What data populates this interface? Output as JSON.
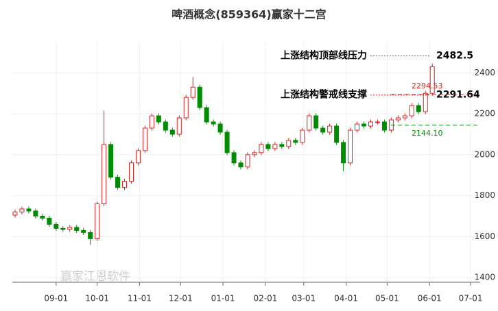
{
  "chart_data": {
    "type": "candlestick",
    "title": "啤酒概念(859364)赢家十二宫",
    "x": [
      -30,
      -25,
      -20,
      -15,
      -10,
      -5,
      0,
      5,
      10,
      15,
      20,
      25,
      30,
      35,
      40,
      45,
      50,
      55,
      60,
      65,
      70,
      75,
      80,
      85,
      90,
      95,
      100,
      105,
      110,
      115,
      120,
      125,
      130,
      135,
      140,
      145,
      150,
      155,
      160,
      165,
      170,
      175,
      180,
      185,
      190,
      195,
      200,
      205,
      210,
      215,
      220,
      225,
      230,
      235,
      240,
      245,
      250,
      255,
      260,
      265,
      270,
      275
    ],
    "open": [
      1705,
      1720,
      1735,
      1725,
      1700,
      1690,
      1660,
      1640,
      1635,
      1645,
      1630,
      1620,
      1590,
      1760,
      2050,
      1890,
      1840,
      1870,
      1960,
      2020,
      2130,
      2190,
      2160,
      2120,
      2100,
      2180,
      2280,
      2330,
      2230,
      2160,
      2150,
      2110,
      2010,
      1960,
      1940,
      2000,
      2010,
      2050,
      2030,
      2050,
      2040,
      2070,
      2060,
      2120,
      2190,
      2130,
      2110,
      2140,
      2060,
      1960,
      2120,
      2150,
      2140,
      2160,
      2160,
      2120,
      2170,
      2180,
      2190,
      2240,
      2210,
      2300
    ],
    "high": [
      1732,
      1747,
      1747,
      1737,
      1712,
      1702,
      1672,
      1652,
      1657,
      1657,
      1642,
      1632,
      1772,
      2215,
      2062,
      1902,
      1882,
      1972,
      2032,
      2142,
      2202,
      2202,
      2172,
      2132,
      2192,
      2292,
      2380,
      2342,
      2242,
      2172,
      2162,
      2122,
      2022,
      1972,
      2012,
      2022,
      2062,
      2062,
      2062,
      2062,
      2082,
      2082,
      2132,
      2202,
      2202,
      2142,
      2152,
      2152,
      2072,
      2132,
      2162,
      2162,
      2172,
      2172,
      2172,
      2182,
      2192,
      2202,
      2252,
      2252,
      2312,
      2445
    ],
    "low": [
      1693,
      1708,
      1713,
      1688,
      1678,
      1648,
      1628,
      1623,
      1623,
      1618,
      1608,
      1560,
      1578,
      1748,
      1878,
      1828,
      1828,
      1858,
      1948,
      2008,
      2118,
      2148,
      2108,
      2088,
      2088,
      2168,
      2268,
      2218,
      2148,
      2138,
      2098,
      1998,
      1948,
      1928,
      1928,
      1988,
      1998,
      2018,
      2018,
      2028,
      2028,
      2048,
      2048,
      2108,
      2118,
      2098,
      2098,
      2048,
      1920,
      1948,
      2108,
      2128,
      2128,
      2148,
      2108,
      2108,
      2158,
      2168,
      2178,
      2198,
      2198,
      2288
    ],
    "close": [
      1720,
      1735,
      1725,
      1700,
      1690,
      1660,
      1640,
      1635,
      1645,
      1630,
      1620,
      1590,
      1760,
      2050,
      1890,
      1840,
      1870,
      1960,
      2020,
      2130,
      2190,
      2160,
      2120,
      2100,
      2180,
      2280,
      2330,
      2230,
      2160,
      2150,
      2110,
      2010,
      1960,
      1940,
      2000,
      2010,
      2050,
      2030,
      2050,
      2040,
      2070,
      2060,
      2120,
      2190,
      2130,
      2110,
      2140,
      2060,
      1960,
      2120,
      2150,
      2140,
      2160,
      2160,
      2120,
      2170,
      2180,
      2190,
      2240,
      2210,
      2300,
      2430
    ],
    "up_color": "#e02020",
    "down_color": "#008c00",
    "xlim": [
      -32,
      310
    ],
    "xticks": [
      {
        "value": 0,
        "label": "09-01"
      },
      {
        "value": 30,
        "label": "10-01"
      },
      {
        "value": 61,
        "label": "11-01"
      },
      {
        "value": 91,
        "label": "12-01"
      },
      {
        "value": 122,
        "label": "01-01"
      },
      {
        "value": 153,
        "label": "02-01"
      },
      {
        "value": 181,
        "label": "03-01"
      },
      {
        "value": 212,
        "label": "04-01"
      },
      {
        "value": 242,
        "label": "05-01"
      },
      {
        "value": 273,
        "label": "06-01"
      },
      {
        "value": 303,
        "label": "07-01"
      }
    ],
    "ylim": [
      1377,
      2555
    ],
    "yticks": [
      1400,
      1600,
      1800,
      2000,
      2200,
      2400
    ],
    "levels": [
      {
        "text": "上涨结构顶部线压力",
        "value": 2482.5,
        "label": "2482.5"
      },
      {
        "text": "上涨结构警戒线支撑",
        "value": 2291.64,
        "label": "2291.64"
      }
    ],
    "markers": [
      {
        "value": 2294.53,
        "label": "2294.53",
        "color": "#e02020"
      },
      {
        "value": 2144.1,
        "label": "2144.10",
        "color": "#008c00"
      }
    ],
    "watermark": "赢家江恩软件"
  }
}
